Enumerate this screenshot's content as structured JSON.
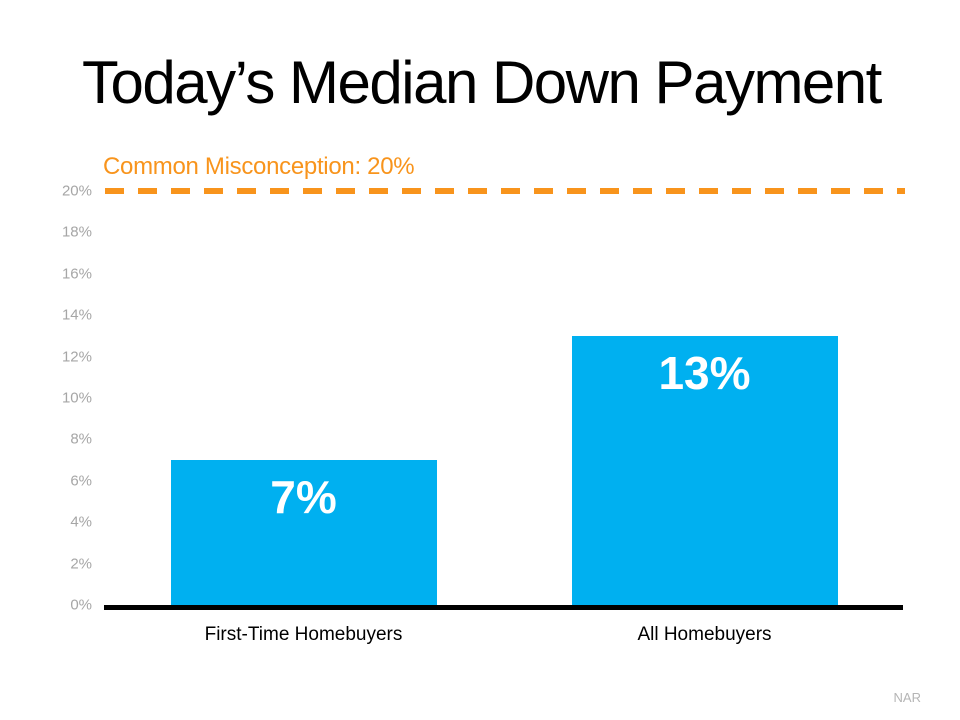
{
  "slide": {
    "source": "NAR"
  },
  "chart_data": {
    "type": "bar",
    "title": "Today’s Median Down Payment",
    "categories": [
      "First-Time Homebuyers",
      "All Homebuyers"
    ],
    "values": [
      7,
      13
    ],
    "value_labels": [
      "7%",
      "13%"
    ],
    "ylim": [
      0,
      20
    ],
    "ytick_step": 2,
    "ytick_labels": [
      "0%",
      "2%",
      "4%",
      "6%",
      "8%",
      "10%",
      "12%",
      "14%",
      "16%",
      "18%",
      "20%"
    ],
    "grid": false,
    "legend": "none",
    "annotation": {
      "label": "Common Misconception: 20%",
      "value": 20,
      "line_style": "dashed"
    },
    "colors": {
      "bar": "#00B0F0",
      "annotation": "#F8941C",
      "axis": "#000000",
      "tick_text": "#A6A6A6",
      "value_label": "#FFFFFF",
      "category_label": "#000000",
      "source_text": "#B5B5B5"
    }
  }
}
